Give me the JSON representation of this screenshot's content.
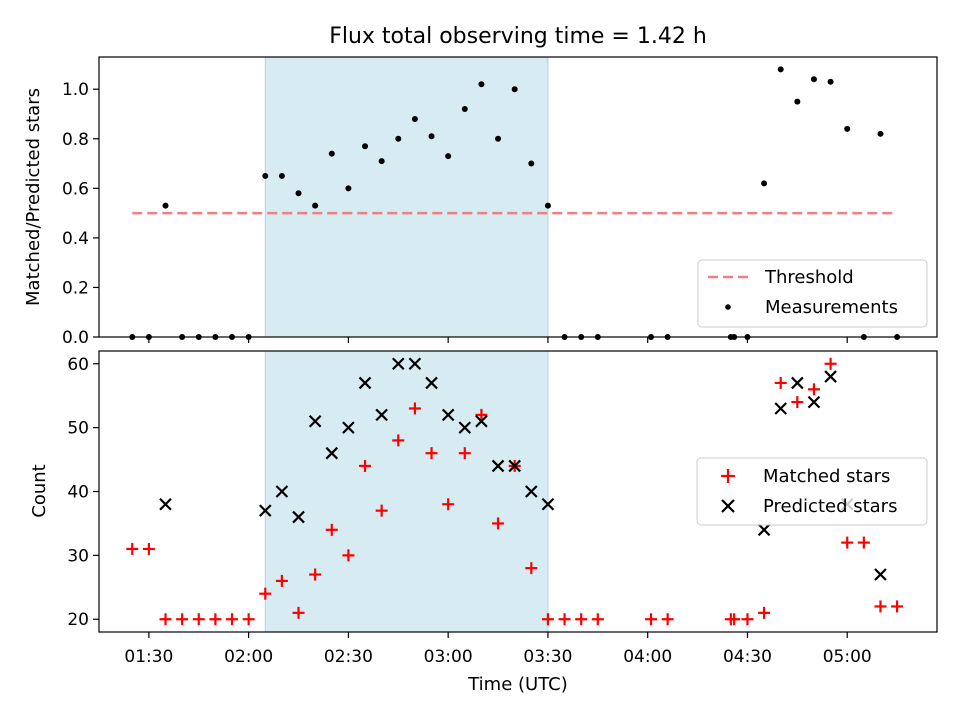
{
  "figure": {
    "title": "Flux total observing time = 1.42 h",
    "xlabel": "Time (UTC)"
  },
  "chart_data": [
    {
      "type": "scatter",
      "ylabel": "Matched/Predicted stars",
      "ylim": [
        0,
        1.13
      ],
      "yticks": [
        0.0,
        0.2,
        0.4,
        0.6,
        0.8,
        1.0
      ],
      "ytick_labels": [
        "0.0",
        "0.2",
        "0.4",
        "0.6",
        "0.8",
        "1.0"
      ],
      "legend_position": "lower-right",
      "highlight_span": {
        "x": [
          "02:05",
          "03:30"
        ],
        "color": "#add8e6"
      },
      "threshold": {
        "name": "Threshold",
        "value": 0.5,
        "x": [
          "01:25",
          "05:14"
        ],
        "color": "#f08080"
      },
      "series": [
        {
          "name": "Measurements",
          "color": "#000000",
          "marker": "dot",
          "points": [
            [
              "01:25",
              0.0
            ],
            [
              "01:30",
              0.0
            ],
            [
              "01:35",
              0.53
            ],
            [
              "01:40",
              0.0
            ],
            [
              "01:45",
              0.0
            ],
            [
              "01:50",
              0.0
            ],
            [
              "01:55",
              0.0
            ],
            [
              "02:00",
              0.0
            ],
            [
              "02:05",
              0.65
            ],
            [
              "02:10",
              0.65
            ],
            [
              "02:15",
              0.58
            ],
            [
              "02:20",
              0.53
            ],
            [
              "02:25",
              0.74
            ],
            [
              "02:30",
              0.6
            ],
            [
              "02:35",
              0.77
            ],
            [
              "02:40",
              0.71
            ],
            [
              "02:45",
              0.8
            ],
            [
              "02:50",
              0.88
            ],
            [
              "02:55",
              0.81
            ],
            [
              "03:00",
              0.73
            ],
            [
              "03:05",
              0.92
            ],
            [
              "03:10",
              1.02
            ],
            [
              "03:15",
              0.8
            ],
            [
              "03:20",
              1.0
            ],
            [
              "03:25",
              0.7
            ],
            [
              "03:30",
              0.53
            ],
            [
              "03:35",
              0.0
            ],
            [
              "03:40",
              0.0
            ],
            [
              "03:45",
              0.0
            ],
            [
              "04:01",
              0.0
            ],
            [
              "04:06",
              0.0
            ],
            [
              "04:25",
              0.0
            ],
            [
              "04:26",
              0.0
            ],
            [
              "04:30",
              0.0
            ],
            [
              "04:35",
              0.62
            ],
            [
              "04:40",
              1.08
            ],
            [
              "04:45",
              0.95
            ],
            [
              "04:50",
              1.04
            ],
            [
              "04:55",
              1.03
            ],
            [
              "05:00",
              0.84
            ],
            [
              "05:05",
              0.0
            ],
            [
              "05:10",
              0.82
            ],
            [
              "05:15",
              0.0
            ]
          ]
        }
      ]
    },
    {
      "type": "scatter",
      "ylabel": "Count",
      "ylim": [
        18,
        62
      ],
      "yticks": [
        20,
        30,
        40,
        50,
        60
      ],
      "ytick_labels": [
        "20",
        "30",
        "40",
        "50",
        "60"
      ],
      "xlim": [
        "01:15",
        "05:27"
      ],
      "xticks": [
        "01:30",
        "02:00",
        "02:30",
        "03:00",
        "03:30",
        "04:00",
        "04:30",
        "05:00"
      ],
      "xtick_labels": [
        "01:30",
        "02:00",
        "02:30",
        "03:00",
        "03:30",
        "04:00",
        "04:30",
        "05:00"
      ],
      "legend_position": "center-right",
      "highlight_span": {
        "x": [
          "02:05",
          "03:30"
        ],
        "color": "#add8e6"
      },
      "series": [
        {
          "name": "Matched stars",
          "color": "#ff0000",
          "marker": "plus",
          "points": [
            [
              "01:25",
              31
            ],
            [
              "01:30",
              31
            ],
            [
              "01:35",
              20
            ],
            [
              "01:40",
              20
            ],
            [
              "01:45",
              20
            ],
            [
              "01:50",
              20
            ],
            [
              "01:55",
              20
            ],
            [
              "02:00",
              20
            ],
            [
              "02:05",
              24
            ],
            [
              "02:10",
              26
            ],
            [
              "02:15",
              21
            ],
            [
              "02:20",
              27
            ],
            [
              "02:25",
              34
            ],
            [
              "02:30",
              30
            ],
            [
              "02:35",
              44
            ],
            [
              "02:40",
              37
            ],
            [
              "02:45",
              48
            ],
            [
              "02:50",
              53
            ],
            [
              "02:55",
              46
            ],
            [
              "03:00",
              38
            ],
            [
              "03:05",
              46
            ],
            [
              "03:10",
              52
            ],
            [
              "03:15",
              35
            ],
            [
              "03:20",
              44
            ],
            [
              "03:25",
              28
            ],
            [
              "03:30",
              20
            ],
            [
              "03:35",
              20
            ],
            [
              "03:40",
              20
            ],
            [
              "03:45",
              20
            ],
            [
              "04:01",
              20
            ],
            [
              "04:06",
              20
            ],
            [
              "04:25",
              20
            ],
            [
              "04:26",
              20
            ],
            [
              "04:30",
              20
            ],
            [
              "04:35",
              21
            ],
            [
              "04:40",
              57
            ],
            [
              "04:45",
              54
            ],
            [
              "04:50",
              56
            ],
            [
              "04:55",
              60
            ],
            [
              "05:00",
              32
            ],
            [
              "05:05",
              32
            ],
            [
              "05:10",
              22
            ],
            [
              "05:15",
              22
            ]
          ]
        },
        {
          "name": "Predicted stars",
          "color": "#000000",
          "marker": "x",
          "points": [
            [
              "01:35",
              38
            ],
            [
              "02:05",
              37
            ],
            [
              "02:10",
              40
            ],
            [
              "02:15",
              36
            ],
            [
              "02:20",
              51
            ],
            [
              "02:25",
              46
            ],
            [
              "02:30",
              50
            ],
            [
              "02:35",
              57
            ],
            [
              "02:40",
              52
            ],
            [
              "02:45",
              60
            ],
            [
              "02:50",
              60
            ],
            [
              "02:55",
              57
            ],
            [
              "03:00",
              52
            ],
            [
              "03:05",
              50
            ],
            [
              "03:10",
              51
            ],
            [
              "03:15",
              44
            ],
            [
              "03:20",
              44
            ],
            [
              "03:25",
              40
            ],
            [
              "03:30",
              38
            ],
            [
              "04:35",
              34
            ],
            [
              "04:40",
              53
            ],
            [
              "04:45",
              57
            ],
            [
              "04:50",
              54
            ],
            [
              "04:55",
              58
            ],
            [
              "05:00",
              38
            ],
            [
              "05:10",
              27
            ]
          ]
        }
      ]
    }
  ]
}
